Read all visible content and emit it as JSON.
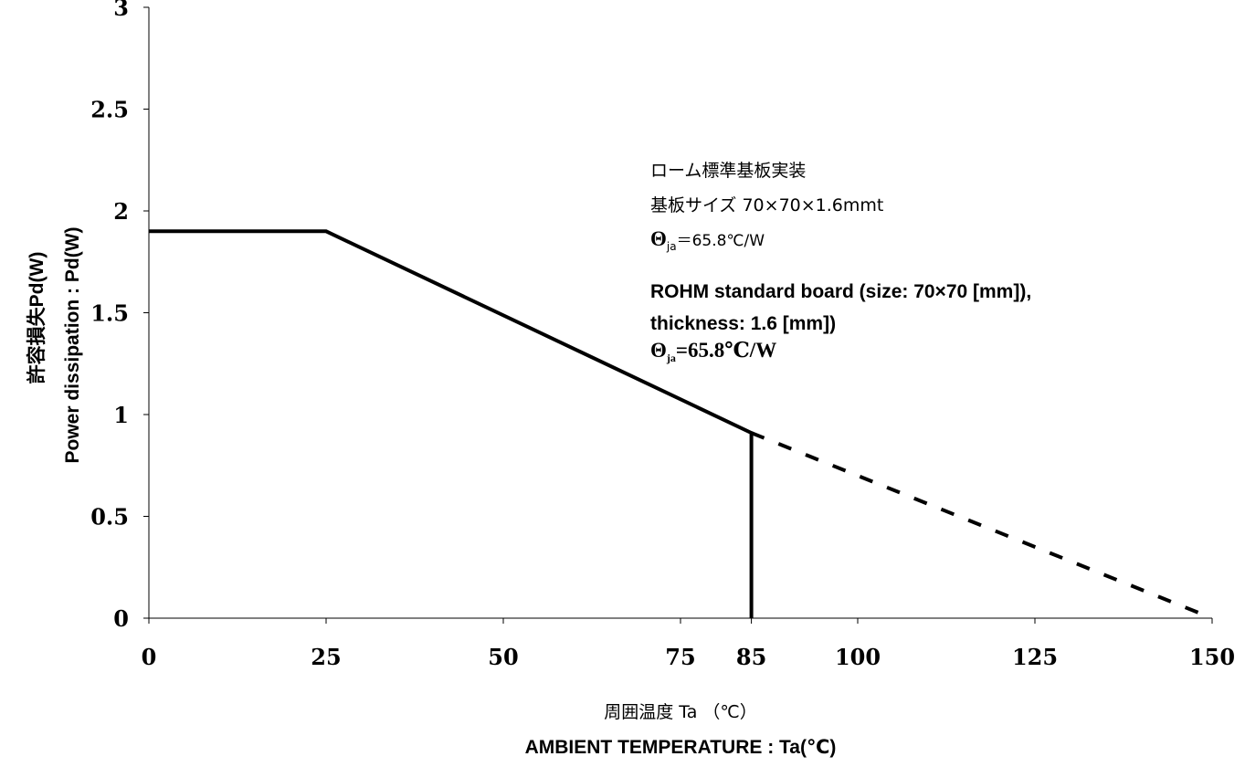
{
  "chart_data": {
    "type": "line",
    "xlabel_ja": "周囲温度 Ta （℃）",
    "xlabel_en": "AMBIENT TEMPERATURE : Ta(℃)",
    "ylabel_ja": "許容損失Pd(W)",
    "ylabel_en": "Power dissipation : Pd(W)",
    "xlim": [
      0,
      150
    ],
    "ylim": [
      0,
      3
    ],
    "x_ticks": [
      0,
      25,
      50,
      75,
      85,
      100,
      125,
      150
    ],
    "x_tick_labels": [
      "0",
      "25",
      "50",
      "75",
      "85",
      "100",
      "125",
      "150"
    ],
    "y_ticks": [
      0,
      0.5,
      1,
      1.5,
      2,
      2.5,
      3
    ],
    "y_tick_labels": [
      "0",
      "0.5",
      "1",
      "1.5",
      "2",
      "2.5",
      "3"
    ],
    "grid": false,
    "series": [
      {
        "style": "solid",
        "x": [
          0,
          25,
          85,
          85
        ],
        "y": [
          1.9,
          1.9,
          0.91,
          0
        ]
      },
      {
        "style": "dashed",
        "x": [
          85,
          150
        ],
        "y": [
          0.91,
          0
        ]
      }
    ],
    "annotations": {
      "ja_line1": "ローム標準基板実装",
      "ja_line2": "基板サイズ 70×70×1.6mmt",
      "ja_theta_symbol": "Θ",
      "ja_theta_sub": "ja",
      "ja_theta_value": "＝65.8℃/W",
      "en_line1": "ROHM standard board (size: 70×70 [mm]),",
      "en_line2": "thickness: 1.6 [mm])",
      "en_theta_symbol": "Θ",
      "en_theta_sub": "ja",
      "en_theta_value": "=65.8℃/W"
    }
  }
}
